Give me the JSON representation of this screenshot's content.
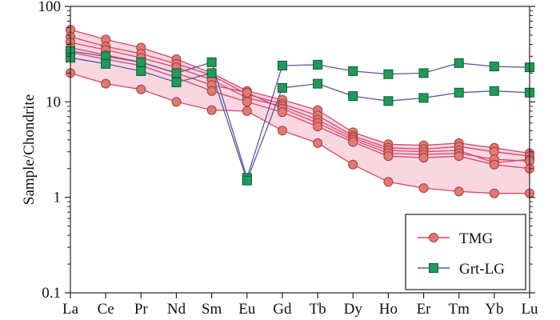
{
  "chart_data": {
    "type": "line",
    "xlabel": "",
    "ylabel": "Sample/Chondrite",
    "yscale": "log",
    "ylim": [
      0.1,
      100
    ],
    "yticks": [
      "0.1",
      "1",
      "10",
      "100"
    ],
    "categories": [
      "La",
      "Ce",
      "Pr",
      "Nd",
      "Sm",
      "Eu",
      "Gd",
      "Tb",
      "Dy",
      "Ho",
      "Er",
      "Tm",
      "Yb",
      "Lu"
    ],
    "grid": false,
    "legend_position": "bottom-right",
    "colors": {
      "tmg_line": "#d9466f",
      "tmg_marker": "#e07b73",
      "tmg_marker_edge": "#a83a3a",
      "tmg_field": "#f6c9d6",
      "grt_line": "#5a5a9e",
      "grt_marker": "#1f9a5a",
      "grt_marker_edge": "#0d5a32"
    },
    "legend": [
      {
        "key": "tmg",
        "label": "TMG"
      },
      {
        "key": "grt",
        "label": "Grt-LG"
      }
    ],
    "series": [
      {
        "group": "tmg",
        "values": [
          57,
          45,
          37,
          28,
          20,
          13,
          10.5,
          8.2,
          4.8,
          3.6,
          3.5,
          3.7,
          3.3,
          2.9
        ]
      },
      {
        "group": "tmg",
        "values": [
          48,
          38,
          32,
          25,
          19,
          12,
          9.5,
          7.2,
          4.4,
          3.3,
          3.2,
          3.4,
          3.0,
          2.7
        ]
      },
      {
        "group": "tmg",
        "values": [
          42,
          35,
          29,
          23,
          17,
          11,
          9.0,
          6.5,
          4.2,
          3.1,
          3.0,
          3.1,
          2.3,
          2.5
        ]
      },
      {
        "group": "tmg",
        "values": [
          37,
          31,
          26,
          20,
          15,
          12.5,
          8.5,
          6.0,
          4.0,
          2.9,
          2.8,
          2.9,
          2.5,
          2.4
        ]
      },
      {
        "group": "tmg",
        "values": [
          33,
          28,
          24,
          18,
          13,
          10,
          7.8,
          5.5,
          3.8,
          2.7,
          2.6,
          2.7,
          2.2,
          2.0
        ]
      },
      {
        "group": "tmg",
        "values": [
          20,
          15.5,
          13.5,
          10,
          8.2,
          8.0,
          5.0,
          3.7,
          2.2,
          1.45,
          1.25,
          1.15,
          1.1,
          1.1
        ]
      },
      {
        "group": "grt",
        "values": [
          34,
          30,
          26,
          20,
          26,
          1.6,
          24,
          24.5,
          21,
          19.5,
          20,
          25.5,
          23.5,
          23
        ]
      },
      {
        "group": "grt",
        "values": [
          29,
          25,
          21,
          16,
          20,
          1.5,
          14,
          15.5,
          11.5,
          10.2,
          11,
          12.5,
          13,
          12.5
        ]
      }
    ]
  }
}
